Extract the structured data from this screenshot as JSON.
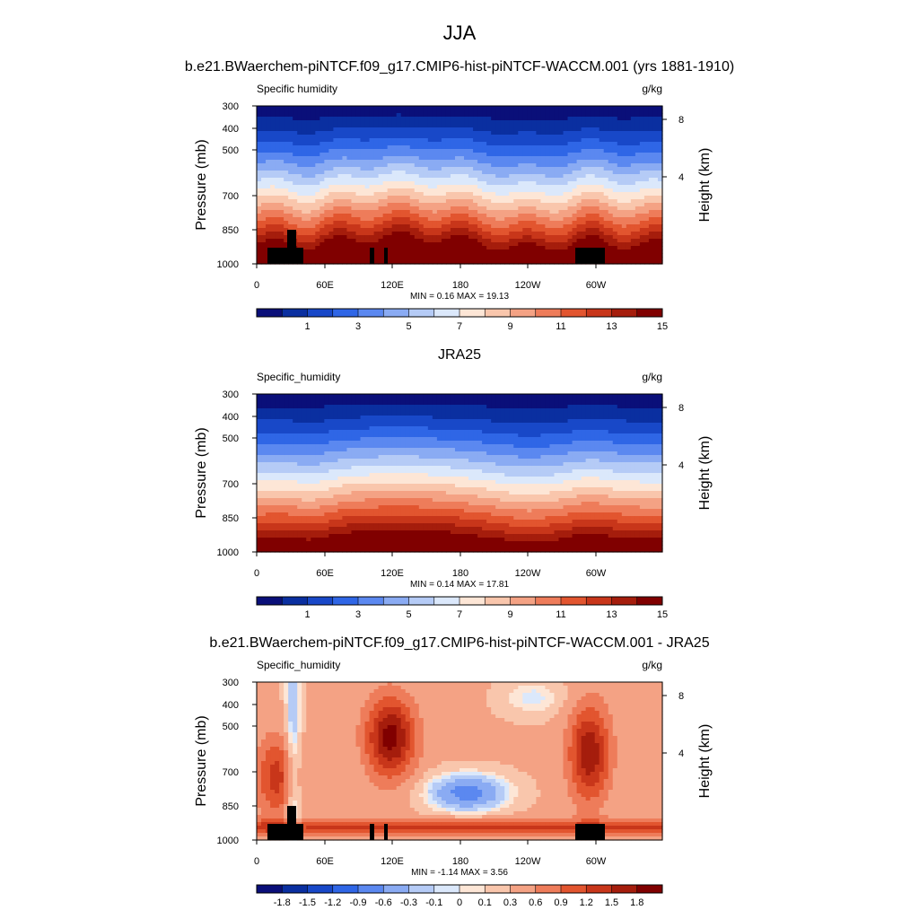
{
  "figure": {
    "title": "JJA"
  },
  "colors": {
    "abs_palette": [
      "#0a0f79",
      "#0a2fa0",
      "#1848c8",
      "#2f66e6",
      "#5b88f0",
      "#8aabf3",
      "#b5cbf6",
      "#dbe8fb",
      "#fde6d6",
      "#f9c6ac",
      "#f4a284",
      "#ee7c5a",
      "#e2552f",
      "#c8361a",
      "#a51d0c",
      "#800000"
    ],
    "diff_palette": [
      "#0a0f79",
      "#0a2fa0",
      "#1848c8",
      "#2f66e6",
      "#5b88f0",
      "#8aabf3",
      "#b5cbf6",
      "#dbe8fb",
      "#fde6d6",
      "#f9c6ac",
      "#f4a284",
      "#ee7c5a",
      "#e2552f",
      "#c8361a",
      "#a51d0c",
      "#800000"
    ],
    "terrain": "#000000"
  },
  "chart_data": [
    {
      "type": "heatmap",
      "title": "b.e21.BWaerchem-piNTCF.f09_g17.CMIP6-hist-piNTCF-WACCM.001 (yrs 1881-1910)",
      "left_label": "Specific humidity",
      "right_label": "g/kg",
      "ylabel": "Pressure (mb)",
      "y2label": "Height (km)",
      "yticks": [
        "300",
        "400",
        "500",
        "700",
        "850",
        "1000"
      ],
      "y2ticks": [
        "8",
        "4"
      ],
      "xticks": [
        "0",
        "60E",
        "120E",
        "180",
        "120W",
        "60W"
      ],
      "stats": "MIN =  0.16  MAX =  19.13",
      "colorbar_labels": [
        "1",
        "3",
        "5",
        "7",
        "9",
        "11",
        "13",
        "15"
      ],
      "colorbar_levels": [
        0.5,
        1,
        2,
        3,
        4,
        5,
        6,
        7,
        8,
        9,
        10,
        11,
        12,
        13,
        14,
        15,
        16
      ],
      "variant": "model"
    },
    {
      "type": "heatmap",
      "title": "JRA25",
      "left_label": "Specific_humidity",
      "right_label": "g/kg",
      "ylabel": "Pressure (mb)",
      "y2label": "Height (km)",
      "yticks": [
        "300",
        "400",
        "500",
        "700",
        "850",
        "1000"
      ],
      "y2ticks": [
        "8",
        "4"
      ],
      "xticks": [
        "0",
        "60E",
        "120E",
        "180",
        "120W",
        "60W"
      ],
      "stats": "MIN =  0.14  MAX =  17.81",
      "colorbar_labels": [
        "1",
        "3",
        "5",
        "7",
        "9",
        "11",
        "13",
        "15"
      ],
      "colorbar_levels": [
        0.5,
        1,
        2,
        3,
        4,
        5,
        6,
        7,
        8,
        9,
        10,
        11,
        12,
        13,
        14,
        15,
        16
      ],
      "variant": "obs"
    },
    {
      "type": "heatmap",
      "title": "b.e21.BWaerchem-piNTCF.f09_g17.CMIP6-hist-piNTCF-WACCM.001 - JRA25",
      "left_label": "Specific_humidity",
      "right_label": "g/kg",
      "ylabel": "Pressure (mb)",
      "y2label": "Height (km)",
      "yticks": [
        "300",
        "400",
        "500",
        "700",
        "850",
        "1000"
      ],
      "y2ticks": [
        "8",
        "4"
      ],
      "xticks": [
        "0",
        "60E",
        "120E",
        "180",
        "120W",
        "60W"
      ],
      "stats": "MIN =  -1.14  MAX =   3.56",
      "colorbar_labels": [
        "-1.8",
        "-1.5",
        "-1.2",
        "-0.9",
        "-0.6",
        "-0.3",
        "-0.1",
        "0",
        "0.1",
        "0.3",
        "0.6",
        "0.9",
        "1.2",
        "1.5",
        "1.8"
      ],
      "colorbar_levels": [
        -2.1,
        -1.8,
        -1.5,
        -1.2,
        -0.9,
        -0.6,
        -0.3,
        -0.1,
        0,
        0.1,
        0.3,
        0.6,
        0.9,
        1.2,
        1.5,
        1.8,
        2.1
      ],
      "variant": "diff"
    }
  ]
}
